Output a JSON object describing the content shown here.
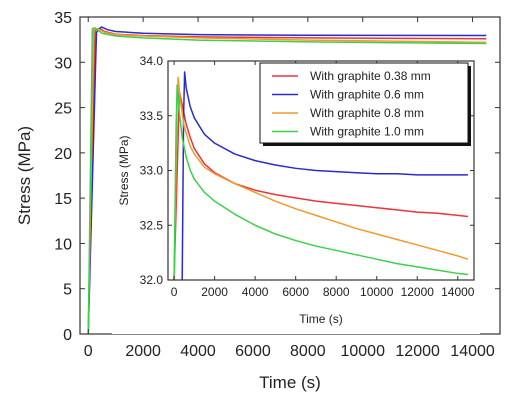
{
  "chart_data": [
    {
      "type": "line",
      "xlabel": "Time (s)",
      "ylabel": "Stress (MPa)",
      "xlim": [
        -300,
        15000
      ],
      "ylim": [
        0,
        35
      ],
      "xticks": [
        0,
        2000,
        4000,
        6000,
        8000,
        10000,
        12000,
        14000
      ],
      "yticks": [
        0,
        5,
        10,
        15,
        20,
        25,
        30,
        35
      ],
      "grid": false,
      "series": [
        {
          "name": "With graphite 0.38 mm",
          "color": "#e8363d",
          "x": [
            0,
            250,
            400,
            600,
            1000,
            2000,
            4000,
            8000,
            14500
          ],
          "y": [
            0,
            33.5,
            33.75,
            33.4,
            33.1,
            32.95,
            32.8,
            32.7,
            32.6
          ]
        },
        {
          "name": "With graphite 0.6 mm",
          "color": "#2b2bcc",
          "x": [
            0,
            300,
            480,
            700,
            1000,
            2000,
            4000,
            8000,
            14500
          ],
          "y": [
            0,
            33.3,
            33.9,
            33.6,
            33.4,
            33.2,
            33.05,
            32.98,
            32.96
          ]
        },
        {
          "name": "With graphite 0.8 mm",
          "color": "#f09a2e",
          "x": [
            0,
            200,
            350,
            600,
            1000,
            2000,
            4000,
            8000,
            14500
          ],
          "y": [
            0,
            33.6,
            33.7,
            33.3,
            33.05,
            32.9,
            32.7,
            32.45,
            32.2
          ]
        },
        {
          "name": "With graphite 1.0 mm",
          "color": "#3ed04a",
          "x": [
            0,
            150,
            250,
            500,
            1000,
            2000,
            4000,
            8000,
            14500
          ],
          "y": [
            0,
            33.7,
            33.8,
            33.2,
            32.9,
            32.7,
            32.45,
            32.25,
            32.07
          ]
        }
      ]
    },
    {
      "type": "line",
      "xlabel": "Time (s)",
      "ylabel": "Stress (MPa)",
      "xlim": [
        -300,
        14800
      ],
      "ylim": [
        32.0,
        34.0
      ],
      "xticks": [
        0,
        2000,
        4000,
        6000,
        8000,
        10000,
        12000,
        14000
      ],
      "yticks": [
        32.0,
        32.5,
        33.0,
        33.5,
        34.0
      ],
      "grid": false,
      "legend": "top-right",
      "series": [
        {
          "name": "With graphite 0.38 mm",
          "color": "#e8363d",
          "x": [
            0,
            200,
            260,
            400,
            600,
            800,
            1000,
            1500,
            2000,
            3000,
            4000,
            5000,
            6000,
            7000,
            8000,
            9000,
            10000,
            11000,
            12000,
            13000,
            14000,
            14500
          ],
          "y": [
            32.0,
            33.3,
            33.72,
            33.6,
            33.42,
            33.3,
            33.2,
            33.06,
            32.98,
            32.88,
            32.82,
            32.78,
            32.75,
            32.72,
            32.7,
            32.68,
            32.66,
            32.64,
            32.62,
            32.61,
            32.59,
            32.58
          ]
        },
        {
          "name": "With graphite 0.6 mm",
          "color": "#2b2bcc",
          "x": [
            400,
            470,
            520,
            600,
            800,
            1000,
            1500,
            2000,
            3000,
            4000,
            5000,
            6000,
            7000,
            8000,
            9000,
            10000,
            11000,
            12000,
            13000,
            14000,
            14500
          ],
          "y": [
            32.0,
            33.5,
            33.9,
            33.75,
            33.58,
            33.48,
            33.33,
            33.25,
            33.15,
            33.09,
            33.05,
            33.02,
            33.0,
            32.99,
            32.98,
            32.97,
            32.97,
            32.96,
            32.96,
            32.96,
            32.96
          ]
        },
        {
          "name": "With graphite 0.8 mm",
          "color": "#f09a2e",
          "x": [
            0,
            150,
            200,
            300,
            500,
            800,
            1000,
            1500,
            2000,
            3000,
            4000,
            5000,
            6000,
            7000,
            8000,
            9000,
            10000,
            11000,
            12000,
            13000,
            14000,
            14500
          ],
          "y": [
            32.0,
            33.6,
            33.85,
            33.65,
            33.4,
            33.22,
            33.15,
            33.03,
            32.97,
            32.88,
            32.8,
            32.72,
            32.65,
            32.59,
            32.53,
            32.47,
            32.42,
            32.37,
            32.32,
            32.27,
            32.22,
            32.19
          ]
        },
        {
          "name": "With graphite 1.0 mm",
          "color": "#3ed04a",
          "x": [
            0,
            100,
            150,
            250,
            400,
            600,
            800,
            1000,
            1500,
            2000,
            3000,
            4000,
            5000,
            6000,
            7000,
            8000,
            9000,
            10000,
            11000,
            12000,
            13000,
            14000,
            14500
          ],
          "y": [
            32.0,
            33.4,
            33.78,
            33.55,
            33.3,
            33.12,
            33.0,
            32.92,
            32.8,
            32.72,
            32.6,
            32.5,
            32.42,
            32.36,
            32.31,
            32.27,
            32.23,
            32.19,
            32.15,
            32.12,
            32.09,
            32.06,
            32.05
          ]
        }
      ]
    }
  ]
}
